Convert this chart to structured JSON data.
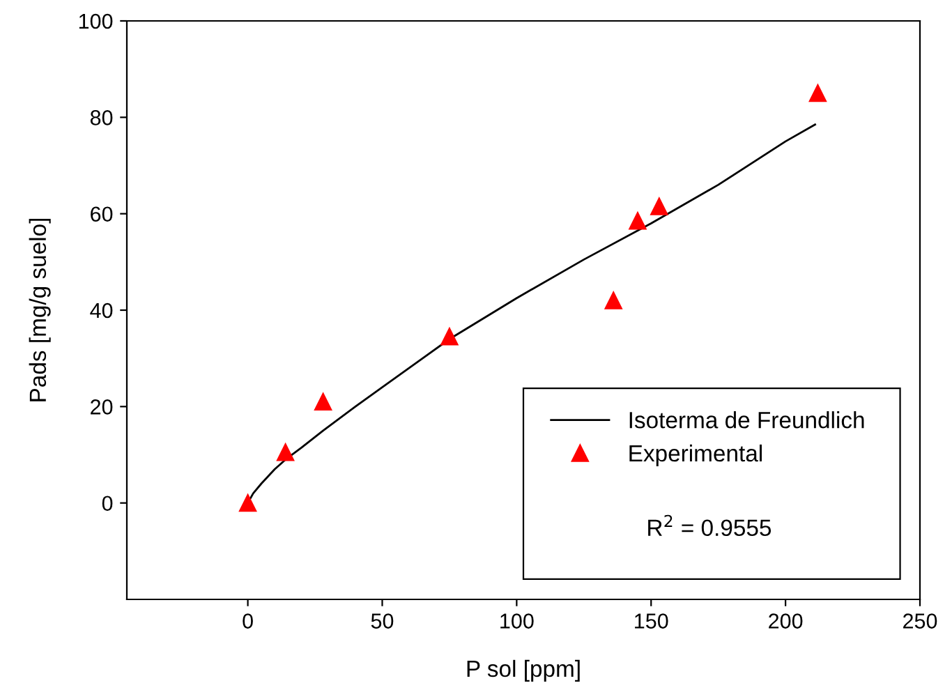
{
  "chart_data": {
    "type": "scatter",
    "xlabel": "P sol [ppm]",
    "ylabel": "Pads [mg/g suelo]",
    "xlim": [
      -45,
      250
    ],
    "ylim": [
      -20,
      100
    ],
    "xticks": [
      0,
      50,
      100,
      150,
      200,
      250
    ],
    "yticks": [
      0,
      20,
      40,
      60,
      80,
      100
    ],
    "grid": false,
    "legend": "bottom right",
    "annotations": [
      "R$^{2}$ = 0.9555"
    ],
    "series": [
      {
        "name": "Isoterma de Freundlich",
        "type": "line",
        "color": "#000000",
        "marker": "none",
        "line_style": "solid",
        "x": [
          0,
          2,
          5,
          10,
          14,
          20,
          28,
          40,
          50,
          75,
          100,
          125,
          150,
          175,
          200,
          211
        ],
        "values": [
          0,
          2,
          4,
          7,
          9,
          11.5,
          15,
          20,
          24,
          34,
          42.5,
          50.5,
          58,
          66,
          75,
          78.5
        ]
      },
      {
        "name": "Experimental",
        "color": "#ff0000",
        "marker": "triangle",
        "x": [
          0,
          14,
          28,
          75,
          136,
          145,
          153,
          212
        ],
        "values": [
          0,
          10.5,
          21,
          34.5,
          42,
          58.5,
          61.5,
          85
        ]
      }
    ]
  }
}
